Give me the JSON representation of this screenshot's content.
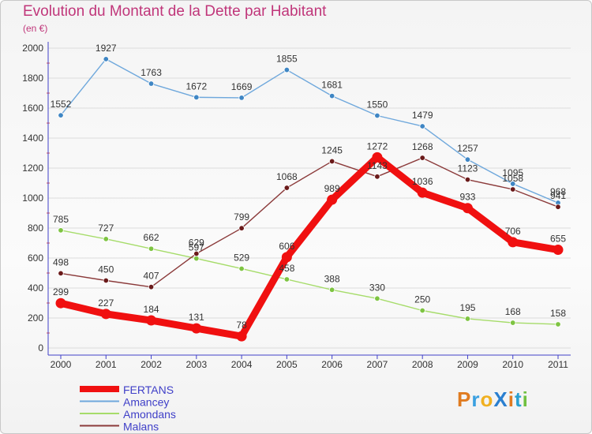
{
  "title": "Evolution du Montant de la Dette par Habitant",
  "subtitle": "(en €)",
  "logo": "ProXiti",
  "colors": {
    "title": "#c0367a",
    "axis": "#4040c8",
    "grid": "#dcdcdc"
  },
  "chart_data": {
    "type": "line",
    "title": "Evolution du Montant de la Dette par Habitant",
    "ylabel": "(en €)",
    "xlabel": "",
    "ylim": [
      0,
      2000
    ],
    "yticks": [
      0,
      200,
      400,
      600,
      800,
      1000,
      1200,
      1400,
      1600,
      1800,
      2000
    ],
    "grid": true,
    "legend_position": "bottom-left",
    "x": [
      "2000",
      "2001",
      "2002",
      "2003",
      "2004",
      "2005",
      "2006",
      "2007",
      "2008",
      "2009",
      "2010",
      "2011"
    ],
    "series": [
      {
        "name": "Amancey",
        "color": "#6fa8dc",
        "marker": "#3f86c4",
        "thick": false,
        "values": [
          1552,
          1927,
          1763,
          1672,
          1669,
          1855,
          1681,
          1550,
          1479,
          1257,
          1095,
          968
        ]
      },
      {
        "name": "Amondans",
        "color": "#a6dc6a",
        "marker": "#7ec442",
        "thick": false,
        "values": [
          785,
          727,
          662,
          597,
          529,
          458,
          388,
          330,
          250,
          195,
          168,
          158
        ]
      },
      {
        "name": "Malans",
        "color": "#8b3a3a",
        "marker": "#6a1a1a",
        "thick": false,
        "values": [
          498,
          450,
          407,
          629,
          799,
          1068,
          1245,
          1143,
          1268,
          1123,
          1058,
          941
        ]
      },
      {
        "name": "FERTANS",
        "color": "#f01010",
        "marker": "#f01010",
        "thick": true,
        "values": [
          299,
          227,
          184,
          131,
          78,
          606,
          989,
          1272,
          1036,
          933,
          706,
          655
        ]
      }
    ],
    "legend_order": [
      "FERTANS",
      "Amancey",
      "Amondans",
      "Malans"
    ]
  }
}
